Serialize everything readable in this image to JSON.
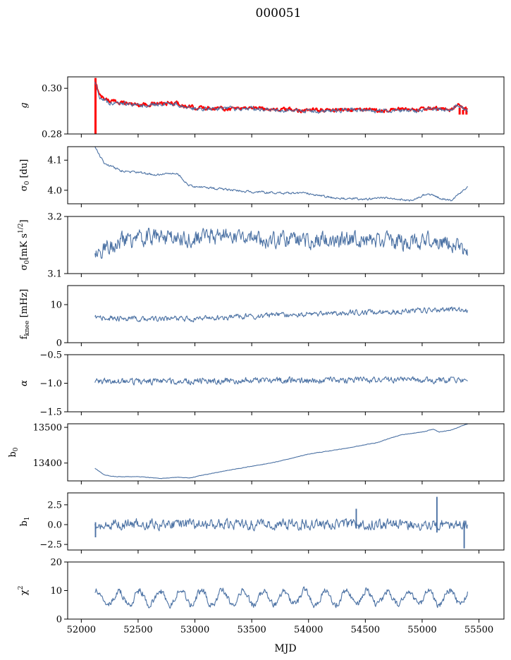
{
  "figure": {
    "title": "000051",
    "xlabel": "MJD",
    "xlim": [
      51880,
      55720
    ],
    "xticks": [
      52000,
      52500,
      53000,
      53500,
      54000,
      54500,
      55000,
      55500
    ],
    "data_xrange": [
      52120,
      55400
    ],
    "colors": {
      "series": "#4c72a4",
      "overlay": "#ff0000",
      "axis": "#000000"
    }
  },
  "chart_data": [
    {
      "type": "line",
      "id": "g",
      "ylabel": "g",
      "ylim": [
        0.28,
        0.305
      ],
      "yticks": [
        0.28,
        0.3
      ],
      "yticklabels": [
        "0.28",
        "0.30"
      ],
      "series": [
        {
          "color": "#ff0000",
          "lw": 2.2,
          "noise": 0.0007,
          "spikes": [
            [
              52125,
              0.28,
              0.3045
            ],
            [
              55330,
              0.2885,
              0.2915
            ],
            [
              55360,
              0.2885,
              0.2905
            ],
            [
              55390,
              0.2885,
              0.2905
            ]
          ],
          "knots": [
            [
              52120,
              0.3025
            ],
            [
              52170,
              0.2965
            ],
            [
              52250,
              0.2945
            ],
            [
              52400,
              0.2935
            ],
            [
              52500,
              0.2928
            ],
            [
              52700,
              0.2932
            ],
            [
              52850,
              0.2935
            ],
            [
              52900,
              0.292
            ],
            [
              53000,
              0.2915
            ],
            [
              53300,
              0.2912
            ],
            [
              53500,
              0.2915
            ],
            [
              53700,
              0.2908
            ],
            [
              54000,
              0.2903
            ],
            [
              54200,
              0.2905
            ],
            [
              54400,
              0.2908
            ],
            [
              54600,
              0.2902
            ],
            [
              54800,
              0.2908
            ],
            [
              54900,
              0.2903
            ],
            [
              55100,
              0.2912
            ],
            [
              55250,
              0.2905
            ],
            [
              55310,
              0.293
            ],
            [
              55400,
              0.2905
            ]
          ]
        },
        {
          "color": "#4c72a4",
          "lw": 1.1,
          "noise": 0.0008,
          "knots": [
            [
              52120,
              0.302
            ],
            [
              52170,
              0.2955
            ],
            [
              52250,
              0.2935
            ],
            [
              52400,
              0.293
            ],
            [
              52500,
              0.2925
            ],
            [
              52700,
              0.293
            ],
            [
              52850,
              0.2932
            ],
            [
              52900,
              0.2915
            ],
            [
              53000,
              0.291
            ],
            [
              53300,
              0.2912
            ],
            [
              53500,
              0.2912
            ],
            [
              53700,
              0.2905
            ],
            [
              54000,
              0.29
            ],
            [
              54200,
              0.2903
            ],
            [
              54400,
              0.2905
            ],
            [
              54600,
              0.29
            ],
            [
              54800,
              0.2905
            ],
            [
              54900,
              0.29
            ],
            [
              55100,
              0.291
            ],
            [
              55250,
              0.2905
            ],
            [
              55310,
              0.2928
            ],
            [
              55400,
              0.29
            ]
          ]
        }
      ]
    },
    {
      "type": "line",
      "id": "sigma0",
      "ylabel": "σ₀ [du]",
      "ylim": [
        3.955,
        4.145
      ],
      "yticks": [
        4.0,
        4.1
      ],
      "yticklabels": [
        "4.0",
        "4.1"
      ],
      "series": [
        {
          "color": "#4c72a4",
          "lw": 1.1,
          "noise": 0.003,
          "knots": [
            [
              52120,
              4.145
            ],
            [
              52200,
              4.09
            ],
            [
              52350,
              4.065
            ],
            [
              52500,
              4.06
            ],
            [
              52650,
              4.05
            ],
            [
              52750,
              4.055
            ],
            [
              52850,
              4.055
            ],
            [
              52950,
              4.015
            ],
            [
              53200,
              4.005
            ],
            [
              53500,
              3.995
            ],
            [
              53800,
              3.99
            ],
            [
              54000,
              3.99
            ],
            [
              54200,
              3.975
            ],
            [
              54500,
              3.97
            ],
            [
              54700,
              3.975
            ],
            [
              54900,
              3.965
            ],
            [
              55050,
              3.99
            ],
            [
              55150,
              3.975
            ],
            [
              55250,
              3.965
            ],
            [
              55400,
              4.01
            ]
          ]
        }
      ]
    },
    {
      "type": "line",
      "id": "sigma0k",
      "ylabel": "σ₀[mK s^1/2]",
      "ylim": [
        3.1,
        3.2
      ],
      "yticks": [
        3.1,
        3.2
      ],
      "yticklabels": [
        "3.1",
        "3.2"
      ],
      "series": [
        {
          "color": "#4c72a4",
          "lw": 1.1,
          "noise": 0.012,
          "knots": [
            [
              52120,
              3.135
            ],
            [
              52300,
              3.155
            ],
            [
              52600,
              3.165
            ],
            [
              52900,
              3.16
            ],
            [
              53300,
              3.168
            ],
            [
              53600,
              3.16
            ],
            [
              54000,
              3.158
            ],
            [
              54400,
              3.16
            ],
            [
              54800,
              3.155
            ],
            [
              55100,
              3.16
            ],
            [
              55400,
              3.14
            ]
          ]
        }
      ]
    },
    {
      "type": "line",
      "id": "fknee",
      "ylabel": "f_knee [mHz]",
      "ylim": [
        0,
        15
      ],
      "yticks": [
        0,
        10
      ],
      "yticklabels": [
        "0",
        "10"
      ],
      "series": [
        {
          "color": "#4c72a4",
          "lw": 1.1,
          "noise": 0.6,
          "knots": [
            [
              52120,
              6.5
            ],
            [
              52500,
              6.2
            ],
            [
              53000,
              6.3
            ],
            [
              53500,
              7.0
            ],
            [
              54000,
              7.5
            ],
            [
              54500,
              8.0
            ],
            [
              55000,
              8.5
            ],
            [
              55400,
              8.7
            ]
          ]
        }
      ]
    },
    {
      "type": "line",
      "id": "alpha",
      "ylabel": "α",
      "ylim": [
        -1.5,
        -0.5
      ],
      "yticks": [
        -1.5,
        -1.0,
        -0.5
      ],
      "yticklabels": [
        "−1.5",
        "−1.0",
        "−0.5"
      ],
      "series": [
        {
          "color": "#4c72a4",
          "lw": 1.1,
          "noise": 0.045,
          "knots": [
            [
              52120,
              -0.97
            ],
            [
              53000,
              -0.96
            ],
            [
              54000,
              -0.95
            ],
            [
              55000,
              -0.94
            ],
            [
              55400,
              -0.95
            ]
          ]
        }
      ]
    },
    {
      "type": "line",
      "id": "b0",
      "ylabel": "b₀",
      "ylim": [
        13350,
        13510
      ],
      "yticks": [
        13400,
        13500
      ],
      "yticklabels": [
        "13400",
        "13500"
      ],
      "series": [
        {
          "color": "#4c72a4",
          "lw": 1.1,
          "noise": 0.6,
          "knots": [
            [
              52120,
              13385
            ],
            [
              52200,
              13367
            ],
            [
              52300,
              13362
            ],
            [
              52500,
              13362
            ],
            [
              52700,
              13357
            ],
            [
              52850,
              13360
            ],
            [
              52950,
              13358
            ],
            [
              53100,
              13368
            ],
            [
              53300,
              13380
            ],
            [
              53700,
              13402
            ],
            [
              54000,
              13425
            ],
            [
              54300,
              13440
            ],
            [
              54600,
              13457
            ],
            [
              54800,
              13478
            ],
            [
              55000,
              13487
            ],
            [
              55100,
              13495
            ],
            [
              55150,
              13487
            ],
            [
              55250,
              13492
            ],
            [
              55400,
              13510
            ]
          ]
        }
      ]
    },
    {
      "type": "line",
      "id": "b1",
      "ylabel": "b₁",
      "ylim": [
        -3.2,
        4.0
      ],
      "yticks": [
        -2.5,
        0.0,
        2.5
      ],
      "yticklabels": [
        "−2.5",
        "0.0",
        "2.5"
      ],
      "series": [
        {
          "color": "#4c72a4",
          "lw": 1.1,
          "noise": 0.55,
          "spikes": [
            [
              52125,
              -1.6,
              0.3
            ],
            [
              54420,
              -0.5,
              2.0
            ],
            [
              55130,
              -1.0,
              3.5
            ],
            [
              55370,
              -3.0,
              0.5
            ]
          ],
          "knots": [
            [
              52120,
              0.1
            ],
            [
              55400,
              0.0
            ]
          ]
        }
      ]
    },
    {
      "type": "line",
      "id": "chi2",
      "ylabel": "χ²",
      "ylim": [
        0,
        20
      ],
      "yticks": [
        0,
        10,
        20
      ],
      "yticklabels": [
        "0",
        "10",
        "20"
      ],
      "series": [
        {
          "color": "#4c72a4",
          "lw": 1.1,
          "noise": 1.0,
          "seasonal": {
            "mean": 7.5,
            "amp": 2.5,
            "period": 182
          },
          "knots": [
            [
              52120,
              7.5
            ],
            [
              55400,
              7.5
            ]
          ]
        }
      ]
    }
  ]
}
